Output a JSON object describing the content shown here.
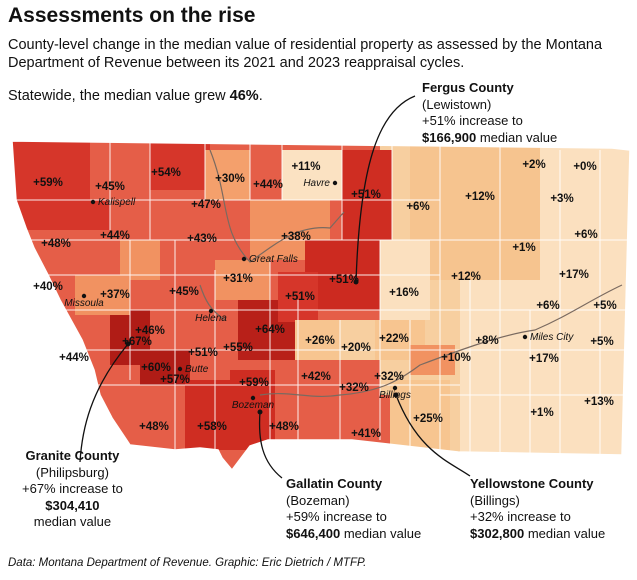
{
  "title": "Assessments on the rise",
  "subtitle": "County-level change in the median value of residential property as assessed by the Montana Department of Revenue between its 2021 and 2023 reappraisal cycles.",
  "statewide": {
    "prefix": "Statewide, the median value grew ",
    "value": "46%",
    "suffix": "."
  },
  "legend_colors": {
    "highest": "#c62a20",
    "high": "#e25a45",
    "mid": "#f08a5c",
    "low": "#f7c590",
    "lowest": "#fde5c8"
  },
  "county_labels": [
    {
      "text": "+59%"
    },
    {
      "text": "+45%"
    },
    {
      "text": "+54%"
    },
    {
      "text": "+30%"
    },
    {
      "text": "+44%"
    },
    {
      "text": "+11%"
    },
    {
      "text": "+51%"
    },
    {
      "text": "+2%"
    },
    {
      "text": "+0%"
    },
    {
      "text": "+47%"
    },
    {
      "text": "+6%"
    },
    {
      "text": "+12%"
    },
    {
      "text": "+3%"
    },
    {
      "text": "+48%"
    },
    {
      "text": "+44%"
    },
    {
      "text": "+43%"
    },
    {
      "text": "+38%"
    },
    {
      "text": "+6%"
    },
    {
      "text": "+1%"
    },
    {
      "text": "+40%"
    },
    {
      "text": "+31%"
    },
    {
      "text": "+51%"
    },
    {
      "text": "+12%"
    },
    {
      "text": "+17%"
    },
    {
      "text": "+37%"
    },
    {
      "text": "+45%"
    },
    {
      "text": "+16%"
    },
    {
      "text": "+6%"
    },
    {
      "text": "+5%"
    },
    {
      "text": "+51%"
    },
    {
      "text": "+46%"
    },
    {
      "text": "+64%"
    },
    {
      "text": "+26%"
    },
    {
      "text": "+22%"
    },
    {
      "text": "+8%"
    },
    {
      "text": "+67%"
    },
    {
      "text": "+20%"
    },
    {
      "text": "+5%"
    },
    {
      "text": "+44%"
    },
    {
      "text": "+51%"
    },
    {
      "text": "+55%"
    },
    {
      "text": "+10%"
    },
    {
      "text": "+17%"
    },
    {
      "text": "+60%"
    },
    {
      "text": "+57%"
    },
    {
      "text": "+59%"
    },
    {
      "text": "+42%"
    },
    {
      "text": "+32%"
    },
    {
      "text": "+32%"
    },
    {
      "text": "+48%"
    },
    {
      "text": "+58%"
    },
    {
      "text": "+48%"
    },
    {
      "text": "+41%"
    },
    {
      "text": "+25%"
    },
    {
      "text": "+1%"
    },
    {
      "text": "+13%"
    }
  ],
  "cities": [
    "Kalispell",
    "Havre",
    "Great Falls",
    "Missoula",
    "Helena",
    "Butte",
    "Bozeman",
    "Billings",
    "Miles City"
  ],
  "callouts": {
    "fergus": {
      "name": "Fergus County",
      "seat": "(Lewistown)",
      "line1": "+51% increase to",
      "value": "$166,900",
      "line2": " median value"
    },
    "granite": {
      "name": "Granite County",
      "seat": "(Philipsburg)",
      "line1": "+67% increase to",
      "value": "$304,410",
      "line2": "median value"
    },
    "gallatin": {
      "name": "Gallatin County",
      "seat": "(Bozeman)",
      "line1": "+59% increase to",
      "value": "$646,400",
      "line2": " median value"
    },
    "yellowstone": {
      "name": "Yellowstone County",
      "seat": "(Billings)",
      "line1": "+32% increase to",
      "value": "$302,800",
      "line2": " median value"
    }
  },
  "footer": "Data: Montana Department of Revenue. Graphic: Eric Dietrich / MTFP."
}
